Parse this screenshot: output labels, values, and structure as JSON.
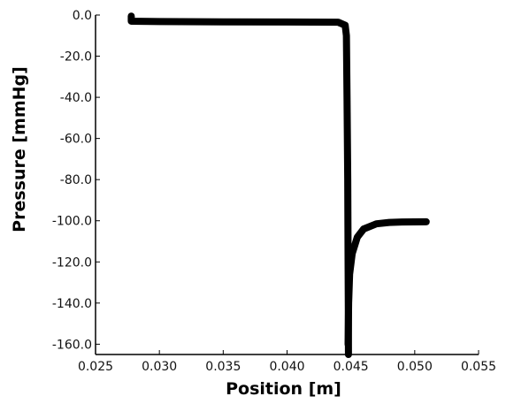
{
  "chart_data": {
    "type": "line",
    "title": "",
    "xlabel": "Position [m]",
    "ylabel": "Pressure [mmHg]",
    "xlim": [
      0.025,
      0.055
    ],
    "ylim": [
      -165,
      0
    ],
    "x_ticks": [
      0.025,
      0.03,
      0.035,
      0.04,
      0.045,
      0.05,
      0.055
    ],
    "x_tick_labels": [
      "0.025",
      "0.030",
      "0.035",
      "0.040",
      "0.045",
      "0.050",
      "0.055"
    ],
    "y_ticks": [
      0,
      -20,
      -40,
      -60,
      -80,
      -100,
      -120,
      -140,
      -160
    ],
    "y_tick_labels": [
      "0.0",
      "-20.0",
      "-40.0",
      "-60.0",
      "-80.0",
      "-100.0",
      "-120.0",
      "-140.0",
      "-160.0"
    ],
    "grid": false,
    "legend": "none",
    "series": [
      {
        "color": "#000000",
        "points": [
          [
            0.0278,
            -0.5
          ],
          [
            0.0278,
            -3.0
          ],
          [
            0.03,
            -3.2
          ],
          [
            0.035,
            -3.3
          ],
          [
            0.04,
            -3.4
          ],
          [
            0.044,
            -3.5
          ],
          [
            0.04455,
            -5.0
          ],
          [
            0.04465,
            -10.0
          ],
          [
            0.0447,
            -40.0
          ],
          [
            0.04475,
            -80.0
          ],
          [
            0.04478,
            -120.0
          ],
          [
            0.0448,
            -145.0
          ],
          [
            0.04481,
            -165.0
          ]
        ]
      },
      {
        "color": "#000000",
        "points": [
          [
            0.04478,
            -160.0
          ],
          [
            0.04482,
            -140.0
          ],
          [
            0.0449,
            -126.0
          ],
          [
            0.0451,
            -116.0
          ],
          [
            0.0455,
            -108.0
          ],
          [
            0.046,
            -104.0
          ],
          [
            0.047,
            -101.5
          ],
          [
            0.048,
            -100.8
          ],
          [
            0.049,
            -100.6
          ],
          [
            0.0509,
            -100.5
          ]
        ]
      }
    ]
  }
}
